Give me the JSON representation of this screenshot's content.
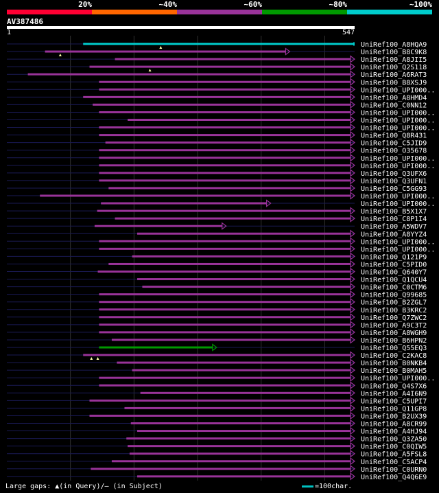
{
  "legend": {
    "labels": [
      "20%",
      "~40%",
      "~60%",
      "~80%",
      "~100%"
    ],
    "colors": [
      "#ff0033",
      "#ff6600",
      "#993399",
      "#009900",
      "#00cccc"
    ]
  },
  "query": {
    "name": "AV387486",
    "start": "1",
    "end": "547"
  },
  "footer": {
    "text": "Large gaps: ▲(in Query)/– (in Subject)",
    "scale_label": "=100char."
  },
  "chart_data": {
    "type": "alignment-map",
    "query_length": 547,
    "series_colors": {
      "cyan": "#00cccc",
      "magenta": "#993399",
      "green": "#009900"
    },
    "hits": [
      {
        "name": "UniRef100_A8HQA9",
        "start": 120,
        "end": 547,
        "color": "cyan",
        "arrow": false,
        "gaps": [
          242
        ]
      },
      {
        "name": "UniRef100_B8C9K8",
        "start": 60,
        "end": 445,
        "color": "magenta",
        "arrow": true,
        "gaps": [
          84
        ]
      },
      {
        "name": "UniRef100_A8JII5",
        "start": 170,
        "end": 547,
        "color": "magenta",
        "arrow": true,
        "gaps": []
      },
      {
        "name": "UniRef100_Q2S118",
        "start": 130,
        "end": 547,
        "color": "magenta",
        "arrow": true,
        "gaps": [
          225
        ]
      },
      {
        "name": "UniRef100_A6RAT3",
        "start": 33,
        "end": 547,
        "color": "magenta",
        "arrow": true,
        "gaps": []
      },
      {
        "name": "UniRef100_B8XSJ9",
        "start": 145,
        "end": 547,
        "color": "magenta",
        "arrow": true,
        "gaps": []
      },
      {
        "name": "UniRef100_UPI000..",
        "start": 145,
        "end": 547,
        "color": "magenta",
        "arrow": true,
        "gaps": []
      },
      {
        "name": "UniRef100_A8HMD4",
        "start": 120,
        "end": 547,
        "color": "magenta",
        "arrow": true,
        "gaps": []
      },
      {
        "name": "UniRef100_C0NN12",
        "start": 135,
        "end": 547,
        "color": "magenta",
        "arrow": true,
        "gaps": []
      },
      {
        "name": "UniRef100_UPI000..",
        "start": 145,
        "end": 547,
        "color": "magenta",
        "arrow": true,
        "gaps": []
      },
      {
        "name": "UniRef100_UPI000..",
        "start": 190,
        "end": 547,
        "color": "magenta",
        "arrow": true,
        "gaps": []
      },
      {
        "name": "UniRef100_UPI000..",
        "start": 145,
        "end": 547,
        "color": "magenta",
        "arrow": true,
        "gaps": []
      },
      {
        "name": "UniRef100_Q8R431",
        "start": 145,
        "end": 547,
        "color": "magenta",
        "arrow": true,
        "gaps": []
      },
      {
        "name": "UniRef100_C5JID9",
        "start": 155,
        "end": 547,
        "color": "magenta",
        "arrow": true,
        "gaps": []
      },
      {
        "name": "UniRef100_O35678",
        "start": 145,
        "end": 547,
        "color": "magenta",
        "arrow": true,
        "gaps": []
      },
      {
        "name": "UniRef100_UPI000..",
        "start": 145,
        "end": 547,
        "color": "magenta",
        "arrow": true,
        "gaps": []
      },
      {
        "name": "UniRef100_UPI000..",
        "start": 145,
        "end": 547,
        "color": "magenta",
        "arrow": true,
        "gaps": []
      },
      {
        "name": "UniRef100_Q3UFX6",
        "start": 145,
        "end": 547,
        "color": "magenta",
        "arrow": true,
        "gaps": []
      },
      {
        "name": "UniRef100_Q3UFN1",
        "start": 145,
        "end": 547,
        "color": "magenta",
        "arrow": true,
        "gaps": []
      },
      {
        "name": "UniRef100_C5GG93",
        "start": 160,
        "end": 547,
        "color": "magenta",
        "arrow": true,
        "gaps": []
      },
      {
        "name": "UniRef100_UPI000..",
        "start": 52,
        "end": 547,
        "color": "magenta",
        "arrow": true,
        "gaps": []
      },
      {
        "name": "UniRef100_UPI000..",
        "start": 148,
        "end": 415,
        "color": "magenta",
        "arrow": true,
        "gaps": []
      },
      {
        "name": "UniRef100_B5X1X7",
        "start": 142,
        "end": 547,
        "color": "magenta",
        "arrow": true,
        "gaps": []
      },
      {
        "name": "UniRef100_C8P1I4",
        "start": 170,
        "end": 547,
        "color": "magenta",
        "arrow": true,
        "gaps": []
      },
      {
        "name": "UniRef100_A5WDV7",
        "start": 138,
        "end": 345,
        "color": "magenta",
        "arrow": true,
        "gaps": []
      },
      {
        "name": "UniRef100_A8YYZ4",
        "start": 205,
        "end": 547,
        "color": "magenta",
        "arrow": true,
        "gaps": []
      },
      {
        "name": "UniRef100_UPI000..",
        "start": 145,
        "end": 547,
        "color": "magenta",
        "arrow": true,
        "gaps": []
      },
      {
        "name": "UniRef100_UPI000..",
        "start": 145,
        "end": 547,
        "color": "magenta",
        "arrow": true,
        "gaps": []
      },
      {
        "name": "UniRef100_Q121P9",
        "start": 197,
        "end": 547,
        "color": "magenta",
        "arrow": true,
        "gaps": []
      },
      {
        "name": "UniRef100_C5PID0",
        "start": 160,
        "end": 547,
        "color": "magenta",
        "arrow": true,
        "gaps": []
      },
      {
        "name": "UniRef100_Q640Y7",
        "start": 143,
        "end": 547,
        "color": "magenta",
        "arrow": true,
        "gaps": []
      },
      {
        "name": "UniRef100_Q1QCU4",
        "start": 205,
        "end": 547,
        "color": "magenta",
        "arrow": true,
        "gaps": []
      },
      {
        "name": "UniRef100_C0CTM6",
        "start": 213,
        "end": 547,
        "color": "magenta",
        "arrow": true,
        "gaps": []
      },
      {
        "name": "UniRef100_Q99685",
        "start": 145,
        "end": 547,
        "color": "magenta",
        "arrow": true,
        "gaps": []
      },
      {
        "name": "UniRef100_B2ZGL7",
        "start": 145,
        "end": 547,
        "color": "magenta",
        "arrow": true,
        "gaps": []
      },
      {
        "name": "UniRef100_B3KRC2",
        "start": 145,
        "end": 547,
        "color": "magenta",
        "arrow": true,
        "gaps": []
      },
      {
        "name": "UniRef100_Q7ZWC2",
        "start": 145,
        "end": 547,
        "color": "magenta",
        "arrow": true,
        "gaps": []
      },
      {
        "name": "UniRef100_A9C3T2",
        "start": 145,
        "end": 547,
        "color": "magenta",
        "arrow": true,
        "gaps": []
      },
      {
        "name": "UniRef100_A8WGH9",
        "start": 145,
        "end": 547,
        "color": "magenta",
        "arrow": true,
        "gaps": []
      },
      {
        "name": "UniRef100_B6HPN2",
        "start": 165,
        "end": 547,
        "color": "magenta",
        "arrow": true,
        "gaps": []
      },
      {
        "name": "UniRef100_Q55EQ3",
        "start": 145,
        "end": 330,
        "color": "green",
        "arrow": true,
        "gaps": []
      },
      {
        "name": "UniRef100_C2KAC8",
        "start": 120,
        "end": 547,
        "color": "magenta",
        "arrow": true,
        "gaps": [
          133,
          143
        ]
      },
      {
        "name": "UniRef100_B0NKB4",
        "start": 173,
        "end": 547,
        "color": "magenta",
        "arrow": true,
        "gaps": []
      },
      {
        "name": "UniRef100_B0MAH5",
        "start": 197,
        "end": 547,
        "color": "magenta",
        "arrow": true,
        "gaps": []
      },
      {
        "name": "UniRef100_UPI000..",
        "start": 145,
        "end": 547,
        "color": "magenta",
        "arrow": true,
        "gaps": []
      },
      {
        "name": "UniRef100_Q4S7X6",
        "start": 145,
        "end": 547,
        "color": "magenta",
        "arrow": true,
        "gaps": []
      },
      {
        "name": "UniRef100_A4I6N9",
        "start": 210,
        "end": 547,
        "color": "magenta",
        "arrow": true,
        "gaps": []
      },
      {
        "name": "UniRef100_C5UPI7",
        "start": 130,
        "end": 547,
        "color": "magenta",
        "arrow": true,
        "gaps": []
      },
      {
        "name": "UniRef100_Q11GP8",
        "start": 185,
        "end": 547,
        "color": "magenta",
        "arrow": true,
        "gaps": []
      },
      {
        "name": "UniRef100_B2UX39",
        "start": 130,
        "end": 547,
        "color": "magenta",
        "arrow": true,
        "gaps": []
      },
      {
        "name": "UniRef100_A8CR99",
        "start": 195,
        "end": 547,
        "color": "magenta",
        "arrow": true,
        "gaps": []
      },
      {
        "name": "UniRef100_A4HJ94",
        "start": 205,
        "end": 547,
        "color": "magenta",
        "arrow": true,
        "gaps": []
      },
      {
        "name": "UniRef100_Q3ZA50",
        "start": 188,
        "end": 547,
        "color": "magenta",
        "arrow": true,
        "gaps": []
      },
      {
        "name": "UniRef100_C0QIW5",
        "start": 190,
        "end": 547,
        "color": "magenta",
        "arrow": true,
        "gaps": []
      },
      {
        "name": "UniRef100_A5FSL8",
        "start": 193,
        "end": 547,
        "color": "magenta",
        "arrow": true,
        "gaps": []
      },
      {
        "name": "UniRef100_C5ACP4",
        "start": 165,
        "end": 547,
        "color": "magenta",
        "arrow": true,
        "gaps": []
      },
      {
        "name": "UniRef100_C0URN0",
        "start": 132,
        "end": 547,
        "color": "magenta",
        "arrow": true,
        "gaps": []
      },
      {
        "name": "UniRef100_Q4Q6E9",
        "start": 205,
        "end": 547,
        "color": "magenta",
        "arrow": true,
        "gaps": []
      }
    ]
  }
}
